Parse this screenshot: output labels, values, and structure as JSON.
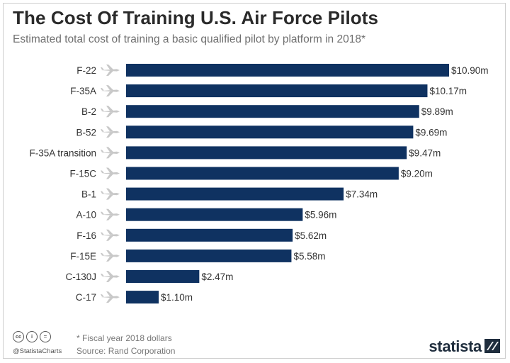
{
  "header": {
    "title": "The Cost Of Training U.S. Air Force Pilots",
    "subtitle": "Estimated total cost of training a basic qualified pilot by platform in 2018*"
  },
  "chart_data": {
    "type": "bar",
    "orientation": "horizontal",
    "title": "The Cost Of Training U.S. Air Force Pilots",
    "subtitle": "Estimated total cost of training a basic qualified pilot by platform in 2018*",
    "categories": [
      "F-22",
      "F-35A",
      "B-2",
      "B-52",
      "F-35A transition",
      "F-15C",
      "B-1",
      "A-10",
      "F-16",
      "F-15E",
      "C-130J",
      "C-17"
    ],
    "values": [
      10.9,
      10.17,
      9.89,
      9.69,
      9.47,
      9.2,
      7.34,
      5.96,
      5.62,
      5.58,
      2.47,
      1.1
    ],
    "value_labels": [
      "$10.90m",
      "$10.17m",
      "$9.89m",
      "$9.69m",
      "$9.47m",
      "$9.20m",
      "$7.34m",
      "$5.96m",
      "$5.62m",
      "$5.58m",
      "$2.47m",
      "$1.10m"
    ],
    "xlim": [
      0,
      10.9
    ],
    "grid": false,
    "bar_color": "#0f3261"
  },
  "footer": {
    "note": "* Fiscal year 2018 dollars",
    "source": "Source: Rand Corporation",
    "handle": "@StatistaCharts",
    "cc_icons": [
      "cc",
      "i",
      "="
    ],
    "brand": "statista"
  },
  "colors": {
    "bar": "#0f3261",
    "aircraft_icon": "#c8c8c8",
    "brand": "#1f2d3d"
  }
}
